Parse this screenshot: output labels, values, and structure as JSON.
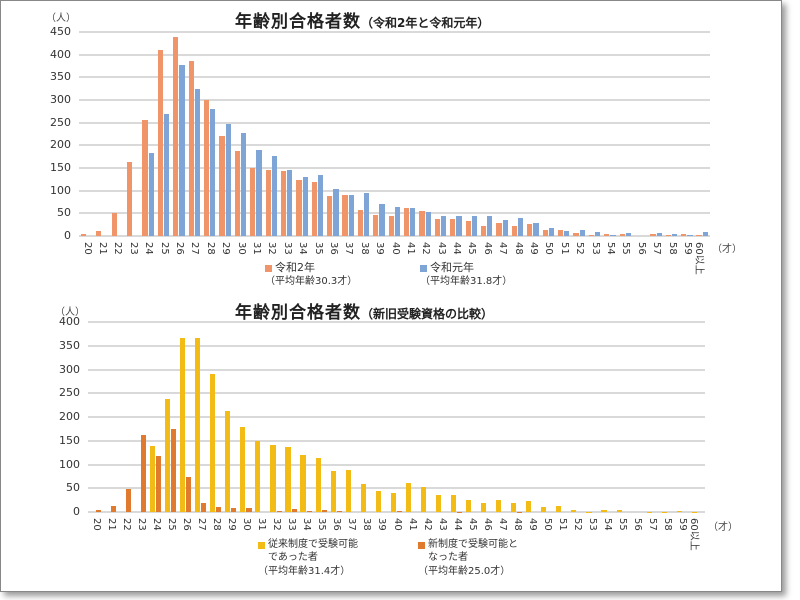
{
  "chart_data": [
    {
      "type": "bar",
      "title": "年齢別合格者数",
      "subtitle": "（令和2年と令和元年）",
      "ylabel": "（人）",
      "xlabel": "（才）",
      "ylim": [
        0,
        450
      ],
      "yticks": [
        0,
        50,
        100,
        150,
        200,
        250,
        300,
        350,
        400,
        450
      ],
      "grid": true,
      "legend_position": "bottom",
      "categories": [
        "20",
        "21",
        "22",
        "23",
        "24",
        "25",
        "26",
        "27",
        "28",
        "29",
        "30",
        "31",
        "32",
        "33",
        "34",
        "35",
        "36",
        "37",
        "38",
        "39",
        "40",
        "41",
        "42",
        "43",
        "44",
        "45",
        "46",
        "47",
        "48",
        "49",
        "50",
        "51",
        "52",
        "53",
        "54",
        "55",
        "56",
        "57",
        "58",
        "59",
        "60以上"
      ],
      "series": [
        {
          "name": "令和2年",
          "note": "（平均年齢30.3才）",
          "color": "#f0956a",
          "values": [
            5,
            12,
            50,
            163,
            256,
            411,
            440,
            385,
            300,
            221,
            188,
            151,
            145,
            143,
            123,
            119,
            89,
            90,
            58,
            47,
            44,
            62,
            56,
            37,
            38,
            34,
            21,
            28,
            22,
            27,
            14,
            14,
            6,
            2,
            4,
            4,
            0,
            4,
            3,
            4,
            2
          ]
        },
        {
          "name": "令和元年",
          "note": "（平均年齢31.8才）",
          "color": "#7fa5d6",
          "values": [
            0,
            0,
            0,
            0,
            182,
            270,
            378,
            324,
            281,
            247,
            228,
            190,
            177,
            145,
            130,
            135,
            104,
            90,
            94,
            70,
            64,
            62,
            54,
            44,
            45,
            45,
            44,
            35,
            40,
            28,
            17,
            12,
            13,
            8,
            3,
            6,
            0,
            6,
            5,
            3,
            8
          ]
        }
      ]
    },
    {
      "type": "bar",
      "title": "年齢別合格者数",
      "subtitle": "（新旧受験資格の比較）",
      "ylabel": "（人）",
      "xlabel": "（才）",
      "ylim": [
        0,
        400
      ],
      "yticks": [
        0,
        50,
        100,
        150,
        200,
        250,
        300,
        350,
        400
      ],
      "grid": true,
      "legend_position": "bottom",
      "categories": [
        "20",
        "21",
        "22",
        "23",
        "24",
        "25",
        "26",
        "27",
        "28",
        "29",
        "30",
        "31",
        "32",
        "33",
        "34",
        "35",
        "36",
        "37",
        "38",
        "39",
        "40",
        "41",
        "42",
        "43",
        "44",
        "45",
        "46",
        "47",
        "48",
        "49",
        "50",
        "51",
        "52",
        "53",
        "54",
        "55",
        "56",
        "57",
        "58",
        "59",
        "60以上"
      ],
      "series": [
        {
          "name": "従来制度で受験可能であった者",
          "note": "（平均年齢31.4才）",
          "color": "#f2bb16",
          "values": [
            0,
            0,
            0,
            0,
            140,
            238,
            366,
            366,
            290,
            212,
            178,
            150,
            141,
            136,
            120,
            114,
            86,
            88,
            58,
            45,
            41,
            61,
            53,
            36,
            35,
            26,
            19,
            25,
            18,
            24,
            11,
            12,
            5,
            1,
            4,
            4,
            0,
            1,
            1,
            3,
            1
          ]
        },
        {
          "name": "新制度で受験可能となった者",
          "note": "（平均年齢25.0才）",
          "color": "#e07a2e",
          "values": [
            5,
            12,
            49,
            163,
            117,
            174,
            74,
            19,
            11,
            8,
            8,
            0,
            2,
            6,
            2,
            4,
            2,
            0,
            0,
            0,
            2,
            0,
            0,
            0,
            1,
            0,
            0,
            0,
            1,
            0,
            0,
            0,
            0,
            0,
            0,
            0,
            0,
            0,
            0,
            0,
            0
          ]
        }
      ]
    }
  ]
}
